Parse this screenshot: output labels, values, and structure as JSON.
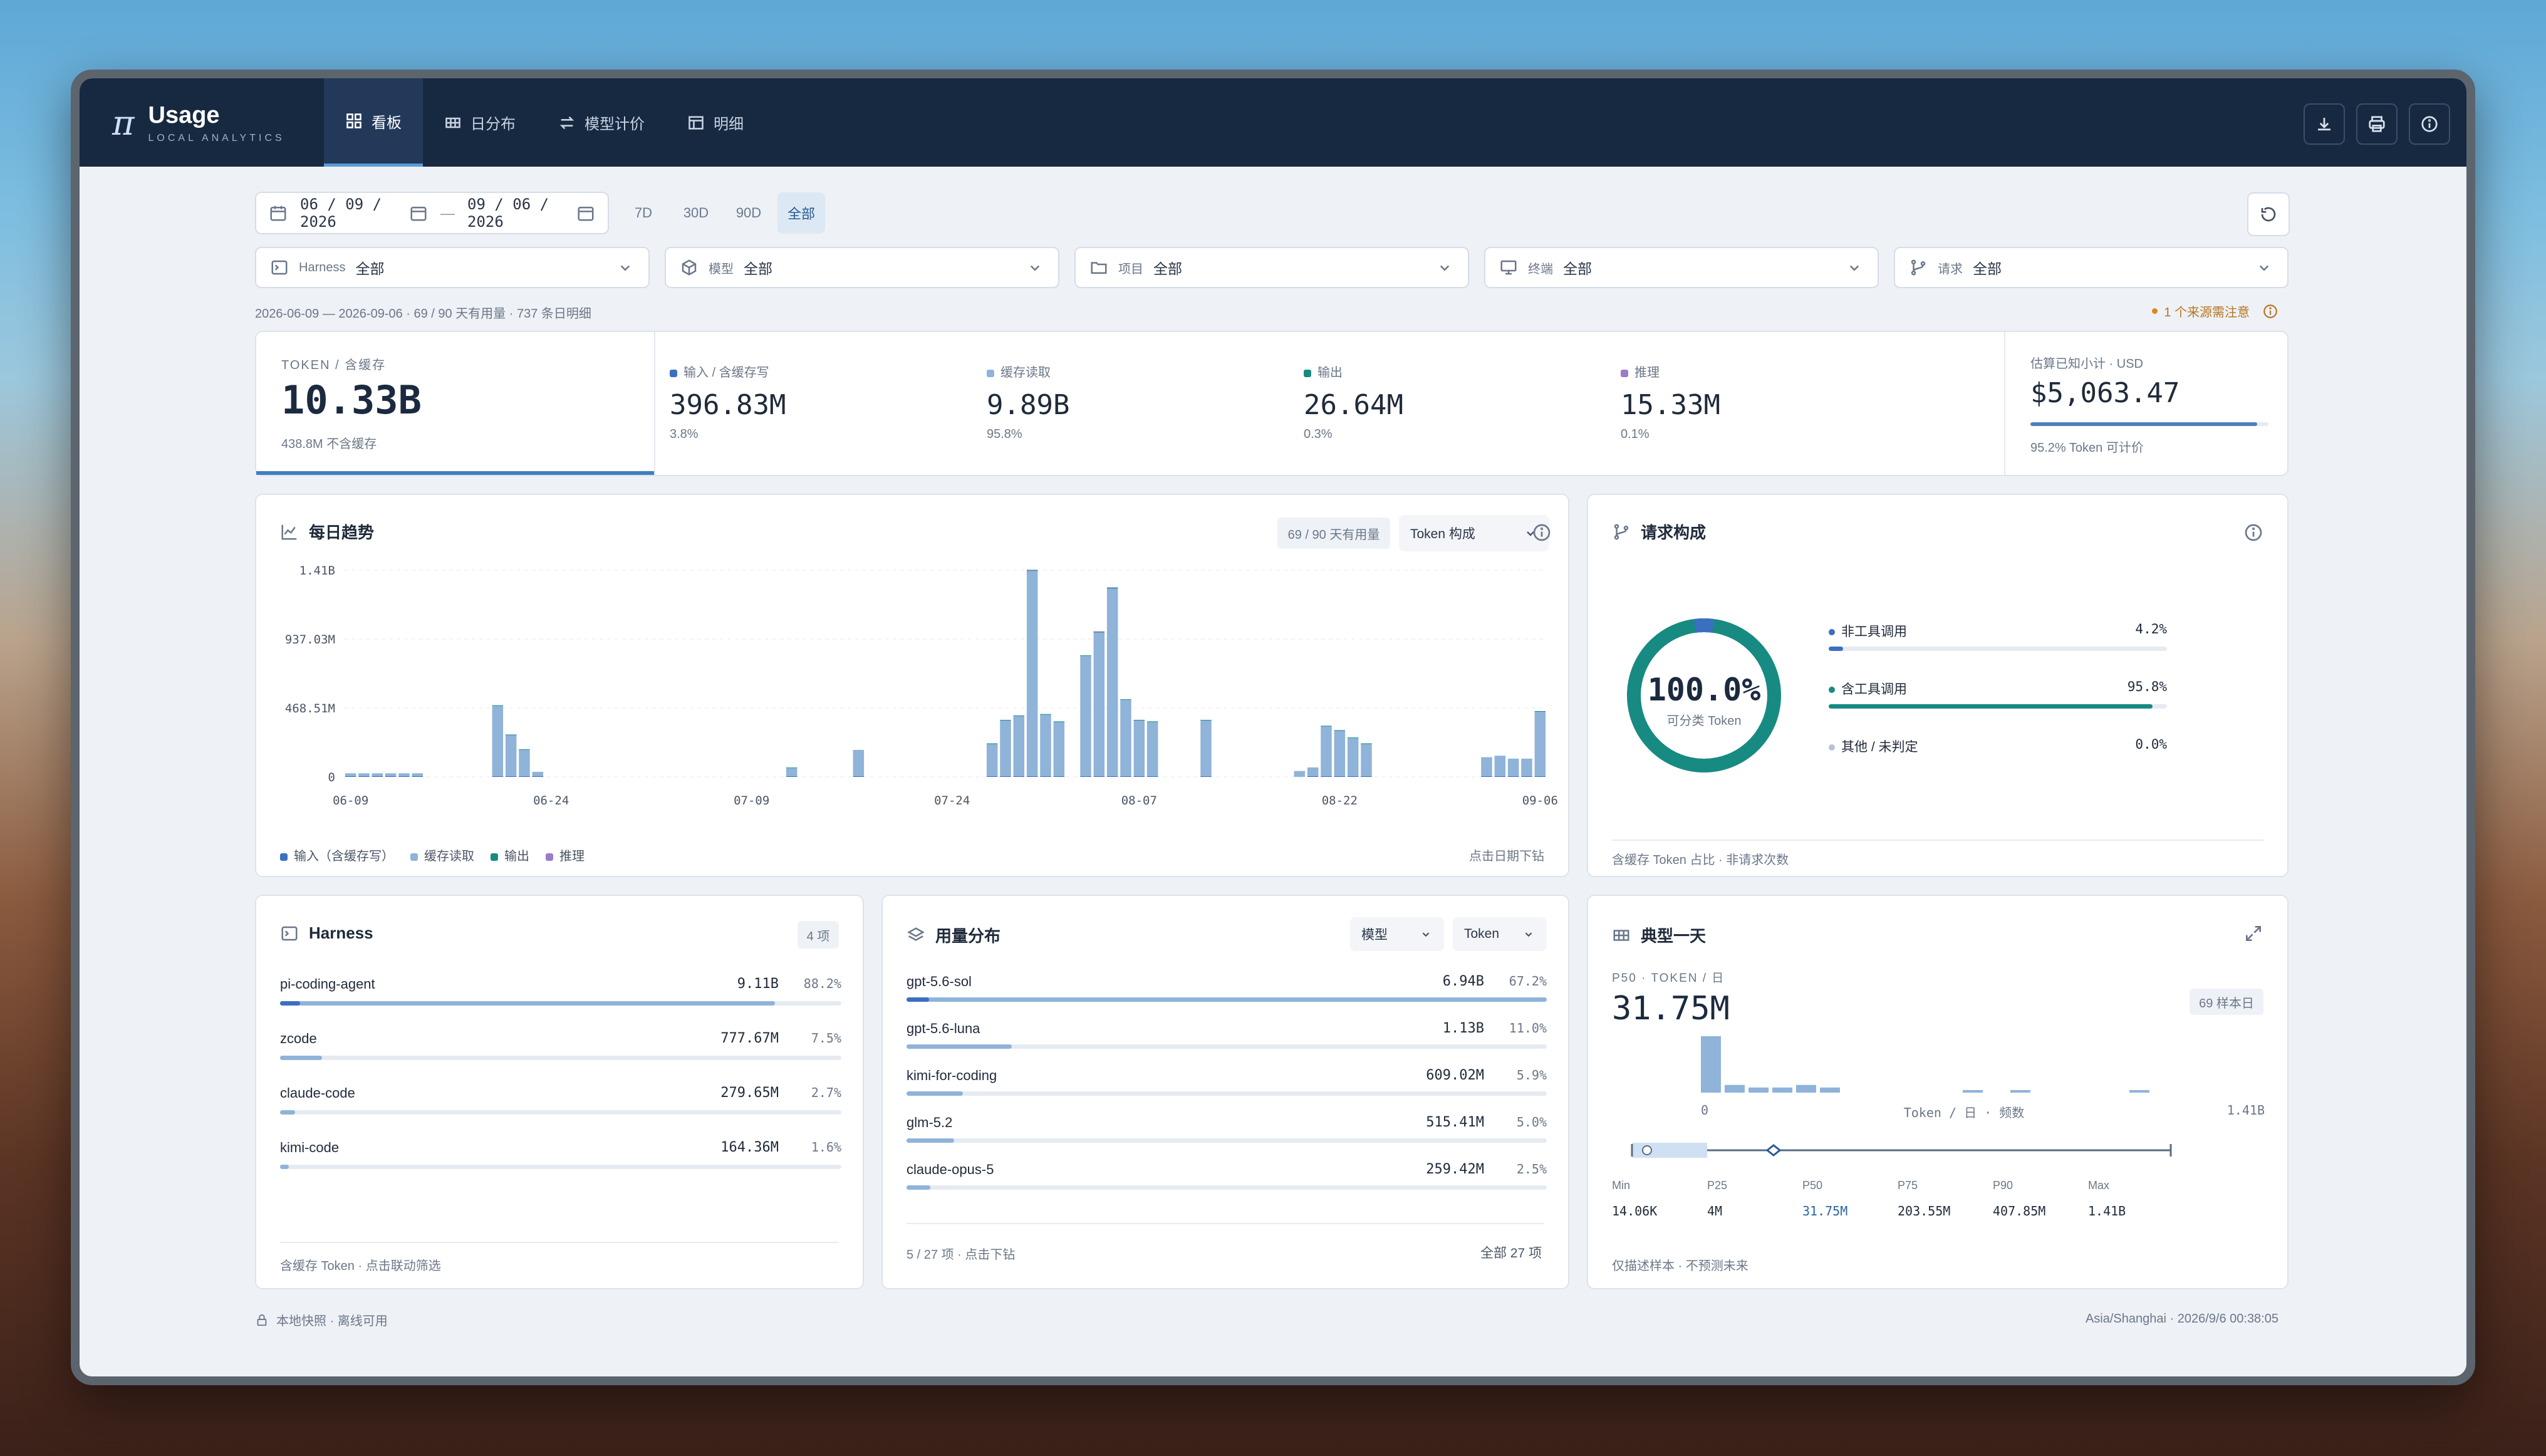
{
  "app": {
    "title": "Usage",
    "subtitle": "LOCAL ANALYTICS"
  },
  "nav": {
    "tabs": [
      {
        "label": "看板",
        "icon": "grid-icon",
        "active": true
      },
      {
        "label": "日分布",
        "icon": "calendar-grid-icon",
        "active": false
      },
      {
        "label": "模型计价",
        "icon": "swap-icon",
        "active": false
      },
      {
        "label": "明细",
        "icon": "table-icon",
        "active": false
      }
    ]
  },
  "toolbar": {
    "icons": [
      "download-icon",
      "print-icon",
      "info-icon"
    ]
  },
  "filters": {
    "date_start": "06 / 09 / 2026",
    "date_sep": "—",
    "date_end": "09 / 06 / 2026",
    "ranges": [
      {
        "label": "7D"
      },
      {
        "label": "30D"
      },
      {
        "label": "90D"
      },
      {
        "label": "全部",
        "active": true
      }
    ],
    "selects": [
      {
        "label": "Harness",
        "value": "全部"
      },
      {
        "label": "模型",
        "value": "全部"
      },
      {
        "label": "项目",
        "value": "全部"
      },
      {
        "label": "终端",
        "value": "全部"
      },
      {
        "label": "请求",
        "value": "全部"
      }
    ],
    "summary": "2026-06-09 — 2026-09-06 · 69 / 90 天有用量 · 737 条日明细",
    "notice": "1 个来源需注意"
  },
  "kpis": {
    "main": {
      "label": "TOKEN / 含缓存",
      "value": "10.33B",
      "sub": "438.8M 不含缓存"
    },
    "items": [
      {
        "label": "输入 / 含缓存写",
        "value": "396.83M",
        "pct": "3.8%",
        "color": "#3b6fc0"
      },
      {
        "label": "缓存读取",
        "value": "9.89B",
        "pct": "95.8%",
        "color": "#8fb3d9"
      },
      {
        "label": "输出",
        "value": "26.64M",
        "pct": "0.3%",
        "color": "#178a82"
      },
      {
        "label": "推理",
        "value": "15.33M",
        "pct": "0.1%",
        "color": "#9a7cc9"
      }
    ],
    "cost": {
      "label": "估算已知小计 · USD",
      "value": "$5,063.47",
      "sub": "95.2% Token 可计价",
      "fraction": 0.952
    }
  },
  "trend": {
    "title": "每日趋势",
    "badge": "69 / 90 天有用量",
    "select": "Token 构成",
    "legend": [
      "输入（含缓存写）",
      "缓存读取",
      "输出",
      "推理"
    ],
    "hint": "点击日期下钻"
  },
  "chart_data": {
    "type": "bar",
    "y_ticks": [
      "1.41B",
      "937.03M",
      "468.51M",
      "0"
    ],
    "x_ticks": [
      "06-09",
      "06-24",
      "07-09",
      "07-24",
      "08-07",
      "08-22",
      "09-06"
    ],
    "ylim": [
      0,
      1410000000
    ],
    "x": [
      "06-09",
      "06-10",
      "06-11",
      "06-12",
      "06-13",
      "06-14",
      "06-15",
      "06-16",
      "06-17",
      "06-18",
      "06-19",
      "06-20",
      "06-21",
      "06-22",
      "06-23",
      "06-24",
      "06-25",
      "06-26",
      "06-27",
      "06-28",
      "06-29",
      "06-30",
      "07-01",
      "07-02",
      "07-03",
      "07-04",
      "07-05",
      "07-06",
      "07-07",
      "07-08",
      "07-09",
      "07-10",
      "07-11",
      "07-12",
      "07-13",
      "07-14",
      "07-15",
      "07-16",
      "07-17",
      "07-18",
      "07-19",
      "07-20",
      "07-21",
      "07-22",
      "07-23",
      "07-24",
      "07-25",
      "07-26",
      "07-27",
      "07-28",
      "07-29",
      "07-30",
      "07-31",
      "08-01",
      "08-02",
      "08-03",
      "08-04",
      "08-05",
      "08-06",
      "08-07",
      "08-08",
      "08-09",
      "08-10",
      "08-11",
      "08-12",
      "08-13",
      "08-14",
      "08-15",
      "08-16",
      "08-17",
      "08-18",
      "08-19",
      "08-20",
      "08-21",
      "08-22",
      "08-23",
      "08-24",
      "08-25",
      "08-26",
      "08-27",
      "08-28",
      "08-29",
      "08-30",
      "08-31",
      "09-01",
      "09-02",
      "09-03",
      "09-04",
      "09-05",
      "09-06"
    ],
    "series": [
      {
        "name": "输入（含缓存写）",
        "color": "#3b6fc0",
        "values": [
          1,
          1,
          1,
          1,
          1,
          1,
          0,
          0,
          0,
          0,
          0,
          2,
          2,
          1,
          1,
          0,
          0,
          0,
          0,
          0,
          0,
          0,
          0,
          0,
          0,
          0,
          0,
          0,
          0,
          0,
          0,
          0,
          0,
          3,
          0,
          0,
          0,
          0,
          1,
          0,
          0,
          0,
          0,
          0,
          0,
          0,
          0,
          0,
          3,
          2,
          3,
          2,
          3,
          3,
          0,
          4,
          3,
          4,
          5,
          3,
          3,
          0,
          0,
          0,
          3,
          0,
          0,
          0,
          0,
          0,
          0,
          0,
          1,
          2,
          3,
          2,
          2,
          0,
          0,
          0,
          0,
          0,
          0,
          0,
          0,
          1,
          2,
          2,
          1,
          3
        ]
      },
      {
        "name": "缓存读取",
        "color": "#8fb3d9",
        "values": [
          20,
          20,
          20,
          20,
          20,
          20,
          0,
          0,
          0,
          0,
          0,
          480,
          280,
          180,
          30,
          0,
          0,
          0,
          0,
          0,
          0,
          0,
          0,
          0,
          0,
          0,
          0,
          0,
          0,
          0,
          0,
          0,
          0,
          55,
          0,
          0,
          0,
          0,
          180,
          0,
          0,
          0,
          0,
          0,
          0,
          0,
          0,
          0,
          220,
          380,
          410,
          1400,
          420,
          370,
          0,
          820,
          980,
          1280,
          520,
          380,
          370,
          0,
          0,
          0,
          380,
          0,
          0,
          0,
          0,
          0,
          0,
          40,
          60,
          340,
          310,
          260,
          220,
          0,
          0,
          0,
          0,
          0,
          0,
          0,
          0,
          130,
          140,
          120,
          120,
          440
        ]
      },
      {
        "name": "输出",
        "color": "#178a82",
        "values": [
          0,
          0,
          0,
          0,
          0,
          0,
          0,
          0,
          0,
          0,
          0,
          1,
          1,
          1,
          0,
          0,
          0,
          0,
          0,
          0,
          0,
          0,
          0,
          0,
          0,
          0,
          0,
          0,
          0,
          0,
          0,
          0,
          0,
          1,
          0,
          0,
          0,
          0,
          0,
          0,
          0,
          0,
          0,
          0,
          0,
          0,
          0,
          0,
          1,
          1,
          1,
          2,
          1,
          1,
          0,
          1,
          2,
          2,
          1,
          1,
          1,
          0,
          0,
          0,
          1,
          0,
          0,
          0,
          0,
          0,
          0,
          0,
          0,
          1,
          1,
          1,
          1,
          0,
          0,
          0,
          0,
          0,
          0,
          0,
          0,
          0,
          0,
          0,
          0,
          1
        ]
      },
      {
        "name": "推理",
        "color": "#9a7cc9",
        "values": [
          0,
          0,
          0,
          0,
          0,
          0,
          0,
          0,
          0,
          0,
          0,
          0,
          0,
          0,
          0,
          0,
          0,
          0,
          0,
          0,
          0,
          0,
          0,
          0,
          0,
          0,
          0,
          0,
          0,
          0,
          0,
          0,
          0,
          0,
          0,
          0,
          0,
          0,
          0,
          0,
          0,
          0,
          0,
          0,
          0,
          0,
          0,
          0,
          0,
          0,
          0,
          1,
          0,
          0,
          0,
          0,
          1,
          1,
          0,
          0,
          0,
          0,
          0,
          0,
          0,
          0,
          0,
          0,
          0,
          0,
          0,
          0,
          0,
          0,
          0,
          0,
          0,
          0,
          0,
          0,
          0,
          0,
          0,
          0,
          0,
          0,
          0,
          0,
          0,
          0
        ]
      }
    ],
    "unit_note": "series values in millions of tokens"
  },
  "request": {
    "title": "请求构成",
    "donut_value": "100.0%",
    "donut_label": "可分类 Token",
    "items": [
      {
        "label": "非工具调用",
        "value": "4.2%",
        "fraction": 0.042,
        "color": "#3b6fc0"
      },
      {
        "label": "含工具调用",
        "value": "95.8%",
        "fraction": 0.958,
        "color": "#178a82"
      },
      {
        "label": "其他 / 未判定",
        "value": "0.0%",
        "fraction": 0.0,
        "color": "#b9c2cf"
      }
    ],
    "footer": "含缓存 Token 占比 · 非请求次数"
  },
  "harness": {
    "title": "Harness",
    "badge": "4 项",
    "items": [
      {
        "name": "pi-coding-agent",
        "value": "9.11B",
        "pct": "88.2%",
        "fraction": 0.882
      },
      {
        "name": "zcode",
        "value": "777.67M",
        "pct": "7.5%",
        "fraction": 0.075
      },
      {
        "name": "claude-code",
        "value": "279.65M",
        "pct": "2.7%",
        "fraction": 0.027
      },
      {
        "name": "kimi-code",
        "value": "164.36M",
        "pct": "1.6%",
        "fraction": 0.016
      }
    ],
    "footer": "含缓存 Token · 点击联动筛选"
  },
  "usage": {
    "title": "用量分布",
    "select_dim": "模型",
    "select_metric": "Token",
    "items": [
      {
        "name": "gpt-5.6-sol",
        "value": "6.94B",
        "pct": "67.2%",
        "fraction": 0.672
      },
      {
        "name": "gpt-5.6-luna",
        "value": "1.13B",
        "pct": "11.0%",
        "fraction": 0.11
      },
      {
        "name": "kimi-for-coding",
        "value": "609.02M",
        "pct": "5.9%",
        "fraction": 0.059
      },
      {
        "name": "glm-5.2",
        "value": "515.41M",
        "pct": "5.0%",
        "fraction": 0.05
      },
      {
        "name": "claude-opus-5",
        "value": "259.42M",
        "pct": "2.5%",
        "fraction": 0.025
      }
    ],
    "footer_left": "5 / 27 项 · 点击下钻",
    "footer_right": "全部 27 项"
  },
  "typical": {
    "title": "典型一天",
    "label": "P50 · TOKEN / 日",
    "value": "31.75M",
    "badge": "69 样本日",
    "hist_values": [
      22,
      3,
      2,
      2,
      3,
      2,
      0,
      0,
      0,
      0,
      0,
      1,
      0,
      1,
      0,
      0,
      0,
      0,
      1
    ],
    "axis": {
      "min": "0",
      "mid": "Token / 日 · 频数",
      "max": "1.41B"
    },
    "stats": [
      {
        "label": "Min",
        "value": "14.06K"
      },
      {
        "label": "P25",
        "value": "4M"
      },
      {
        "label": "P50",
        "value": "31.75M",
        "highlight": true
      },
      {
        "label": "P75",
        "value": "203.55M"
      },
      {
        "label": "P90",
        "value": "407.85M"
      },
      {
        "label": "Max",
        "value": "1.41B"
      }
    ],
    "footer": "仅描述样本 · 不预测未来"
  },
  "footer": {
    "left": "本地快照 · 离线可用",
    "right": "Asia/Shanghai · 2026/9/6 00:38:05"
  }
}
